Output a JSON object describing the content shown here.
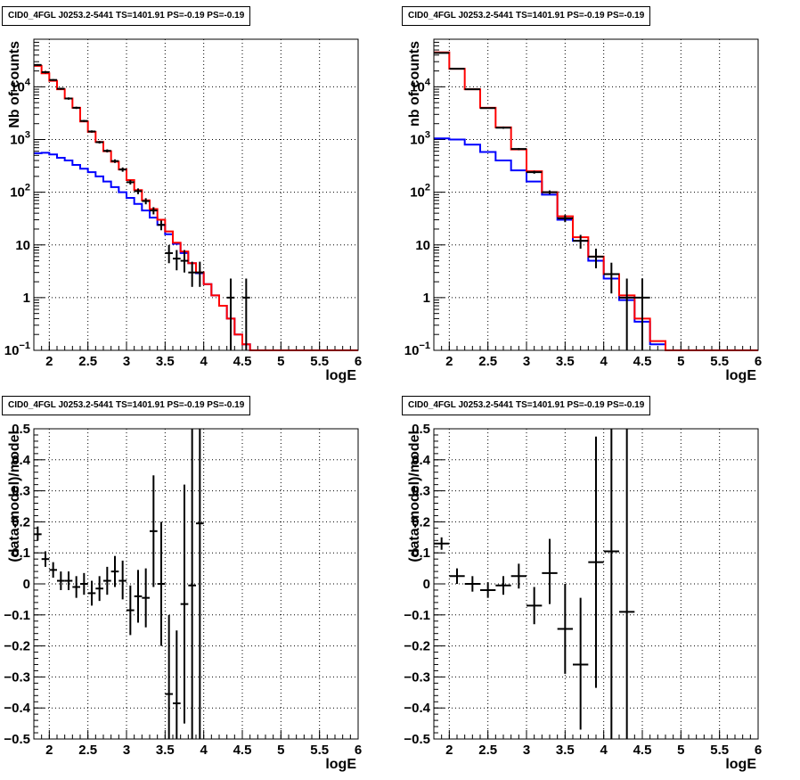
{
  "colors": {
    "model_total": "#ff0000",
    "model_background": "#0000ff",
    "data": "#000000"
  },
  "chart_data": [
    {
      "type": "line",
      "panel": "top-left",
      "title": "CID0_4FGL J0253.2-5441 TS=1401.91 PS=-0.19 PS=-0.19",
      "xlabel": "logE",
      "ylabel": "Nb of counts",
      "xlim": [
        1.8,
        6.0
      ],
      "ylim": [
        0.1,
        80000
      ],
      "yscale": "log",
      "grid": true,
      "x_tick_labels": [
        "2",
        "2.5",
        "3",
        "3.5",
        "4",
        "4.5",
        "5",
        "5.5",
        "6"
      ],
      "y_tick_labels": [
        {
          "v": 0.1,
          "label": "10",
          "sup": "−1"
        },
        {
          "v": 1,
          "label": "1",
          "sup": ""
        },
        {
          "v": 10,
          "label": "10",
          "sup": ""
        },
        {
          "v": 100,
          "label": "10",
          "sup": "2"
        },
        {
          "v": 1000,
          "label": "10",
          "sup": "3"
        },
        {
          "v": 10000,
          "label": "10",
          "sup": "4"
        }
      ],
      "bin_edges": [
        1.8,
        1.9,
        2.0,
        2.1,
        2.2,
        2.3,
        2.4,
        2.5,
        2.6,
        2.7,
        2.8,
        2.9,
        3.0,
        3.1,
        3.2,
        3.3,
        3.4,
        3.5,
        3.6,
        3.7,
        3.8,
        3.9,
        4.0,
        4.1,
        4.2,
        4.3,
        4.4,
        4.5,
        4.6,
        4.7,
        4.8,
        4.9,
        5.0,
        5.1,
        5.2,
        5.3,
        5.4,
        5.5,
        5.6,
        5.7,
        5.8,
        5.9,
        6.0
      ],
      "series": [
        {
          "values": [
            25000,
            18000,
            13000,
            9000,
            6000,
            4000,
            2200,
            1400,
            900,
            600,
            380,
            270,
            170,
            110,
            70,
            48,
            30,
            18,
            11,
            7.5,
            4.5,
            3.0,
            1.8,
            1.1,
            0.7,
            0.4,
            0.2,
            0.13,
            0.1,
            0.1,
            0.1,
            0.1,
            0.1,
            0.1,
            0.1,
            0.1,
            0.1,
            0.1,
            0.1,
            0.1,
            0.1,
            0.1
          ]
        },
        {
          "values": [
            550,
            560,
            520,
            450,
            400,
            330,
            280,
            240,
            200,
            160,
            125,
            100,
            78,
            60,
            45,
            33,
            24,
            16,
            10.5,
            7,
            4.5,
            2.9,
            1.8,
            1.1,
            0.7,
            0.4,
            0.2,
            0.13,
            0.1,
            0.1,
            0.1,
            0.1,
            0.1,
            0.1,
            0.1,
            0.1,
            0.1,
            0.1,
            0.1,
            0.1,
            0.1,
            0.1
          ]
        }
      ],
      "data_points": [
        {
          "x": 1.85,
          "y": 26000,
          "lo": 25000,
          "hi": 27000
        },
        {
          "x": 1.95,
          "y": 19000,
          "lo": 18000,
          "hi": 20000
        },
        {
          "x": 2.05,
          "y": 13500,
          "lo": 13000,
          "hi": 14000
        },
        {
          "x": 2.15,
          "y": 9200,
          "lo": 8800,
          "hi": 9600
        },
        {
          "x": 2.25,
          "y": 6000,
          "lo": 5700,
          "hi": 6300
        },
        {
          "x": 2.35,
          "y": 4000,
          "lo": 3800,
          "hi": 4200
        },
        {
          "x": 2.45,
          "y": 2250,
          "lo": 2150,
          "hi": 2350
        },
        {
          "x": 2.55,
          "y": 1420,
          "lo": 1350,
          "hi": 1490
        },
        {
          "x": 2.65,
          "y": 890,
          "lo": 840,
          "hi": 940
        },
        {
          "x": 2.75,
          "y": 610,
          "lo": 570,
          "hi": 650
        },
        {
          "x": 2.85,
          "y": 390,
          "lo": 360,
          "hi": 420
        },
        {
          "x": 2.95,
          "y": 270,
          "lo": 245,
          "hi": 295
        },
        {
          "x": 3.05,
          "y": 155,
          "lo": 140,
          "hi": 170
        },
        {
          "x": 3.15,
          "y": 105,
          "lo": 92,
          "hi": 118
        },
        {
          "x": 3.25,
          "y": 68,
          "lo": 59,
          "hi": 77
        },
        {
          "x": 3.35,
          "y": 45,
          "lo": 38,
          "hi": 52
        },
        {
          "x": 3.45,
          "y": 24,
          "lo": 19,
          "hi": 29
        },
        {
          "x": 3.55,
          "y": 7,
          "lo": 4.5,
          "hi": 10
        },
        {
          "x": 3.65,
          "y": 5.5,
          "lo": 3.3,
          "hi": 8
        },
        {
          "x": 3.75,
          "y": 5,
          "lo": 3,
          "hi": 8
        },
        {
          "x": 3.85,
          "y": 3,
          "lo": 1.6,
          "hi": 4.8
        },
        {
          "x": 3.95,
          "y": 3,
          "lo": 1.6,
          "hi": 4.8
        },
        {
          "x": 4.35,
          "y": 1,
          "lo": 0.1,
          "hi": 2.3
        },
        {
          "x": 4.55,
          "y": 1,
          "lo": 0.1,
          "hi": 2.3
        }
      ]
    },
    {
      "type": "line",
      "panel": "top-right",
      "title": "CID0_4FGL J0253.2-5441 TS=1401.91 PS=-0.19 PS=-0.19",
      "xlabel": "logE",
      "ylabel": "nb of counts",
      "xlim": [
        1.8,
        6.0
      ],
      "ylim": [
        0.1,
        80000
      ],
      "yscale": "log",
      "grid": true,
      "x_tick_labels": [
        "2",
        "2.5",
        "3",
        "3.5",
        "4",
        "4.5",
        "5",
        "5.5",
        "6"
      ],
      "y_tick_labels": [
        {
          "v": 0.1,
          "label": "10",
          "sup": "−1"
        },
        {
          "v": 1,
          "label": "1",
          "sup": ""
        },
        {
          "v": 10,
          "label": "10",
          "sup": ""
        },
        {
          "v": 100,
          "label": "10",
          "sup": "2"
        },
        {
          "v": 1000,
          "label": "10",
          "sup": "3"
        },
        {
          "v": 10000,
          "label": "10",
          "sup": "4"
        }
      ],
      "bin_edges": [
        1.8,
        2.0,
        2.2,
        2.4,
        2.6,
        2.8,
        3.0,
        3.2,
        3.4,
        3.6,
        3.8,
        4.0,
        4.2,
        4.4,
        4.6,
        4.8,
        5.0,
        5.2,
        5.4,
        5.6,
        5.8,
        6.0
      ],
      "series": [
        {
          "values": [
            45000,
            22000,
            9000,
            4000,
            1700,
            650,
            250,
            100,
            35,
            14,
            6,
            2.8,
            1.1,
            0.4,
            0.15,
            0.1,
            0.1,
            0.1,
            0.1,
            0.1,
            0.1
          ]
        },
        {
          "values": [
            1050,
            1000,
            800,
            580,
            400,
            260,
            160,
            90,
            30,
            12,
            5,
            2.3,
            0.9,
            0.35,
            0.13,
            0.1,
            0.1,
            0.1,
            0.1,
            0.1,
            0.1
          ]
        }
      ],
      "data_points": [
        {
          "x": 1.9,
          "y": 44000,
          "lo": 43000,
          "hi": 45000
        },
        {
          "x": 2.1,
          "y": 22000,
          "lo": 21500,
          "hi": 22500
        },
        {
          "x": 2.3,
          "y": 9000,
          "lo": 8800,
          "hi": 9200
        },
        {
          "x": 2.5,
          "y": 3950,
          "lo": 3850,
          "hi": 4050
        },
        {
          "x": 2.7,
          "y": 1680,
          "lo": 1600,
          "hi": 1760
        },
        {
          "x": 2.9,
          "y": 660,
          "lo": 630,
          "hi": 690
        },
        {
          "x": 3.1,
          "y": 240,
          "lo": 225,
          "hi": 255
        },
        {
          "x": 3.3,
          "y": 100,
          "lo": 92,
          "hi": 108
        },
        {
          "x": 3.5,
          "y": 32,
          "lo": 27,
          "hi": 37
        },
        {
          "x": 3.7,
          "y": 12,
          "lo": 8.5,
          "hi": 15.5
        },
        {
          "x": 3.9,
          "y": 6,
          "lo": 3.6,
          "hi": 8.5
        },
        {
          "x": 4.1,
          "y": 2.8,
          "lo": 1.2,
          "hi": 4.6
        },
        {
          "x": 4.3,
          "y": 1,
          "lo": 0.1,
          "hi": 2.3
        },
        {
          "x": 4.5,
          "y": 1,
          "lo": 0.1,
          "hi": 2.3
        }
      ]
    },
    {
      "type": "scatter",
      "panel": "bottom-left",
      "title": "CID0_4FGL J0253.2-5441 TS=1401.91 PS=-0.19 PS=-0.19",
      "xlabel": "logE",
      "ylabel": "(data-model)/model",
      "xlim": [
        1.8,
        6.0
      ],
      "ylim": [
        -0.5,
        0.5
      ],
      "yscale": "linear",
      "grid": true,
      "x_tick_labels": [
        "2",
        "2.5",
        "3",
        "3.5",
        "4",
        "4.5",
        "5",
        "5.5",
        "6"
      ],
      "y_tick_labels": [
        {
          "v": -0.5,
          "label": "−0.5",
          "sup": ""
        },
        {
          "v": -0.4,
          "label": "−0.4",
          "sup": ""
        },
        {
          "v": -0.3,
          "label": "−0.3",
          "sup": ""
        },
        {
          "v": -0.2,
          "label": "−0.2",
          "sup": ""
        },
        {
          "v": -0.1,
          "label": "−0.1",
          "sup": ""
        },
        {
          "v": 0,
          "label": "0",
          "sup": ""
        },
        {
          "v": 0.1,
          "label": "0.1",
          "sup": ""
        },
        {
          "v": 0.2,
          "label": "0.2",
          "sup": ""
        },
        {
          "v": 0.3,
          "label": "0.3",
          "sup": ""
        },
        {
          "v": 0.4,
          "label": "0.4",
          "sup": ""
        },
        {
          "v": 0.5,
          "label": "0.5",
          "sup": ""
        }
      ],
      "half_width": 0.05,
      "data_points": [
        {
          "x": 1.85,
          "y": 0.16,
          "lo": 0.14,
          "hi": 0.185
        },
        {
          "x": 1.95,
          "y": 0.08,
          "lo": 0.055,
          "hi": 0.105
        },
        {
          "x": 2.05,
          "y": 0.045,
          "lo": 0.02,
          "hi": 0.07
        },
        {
          "x": 2.15,
          "y": 0.01,
          "lo": -0.02,
          "hi": 0.04
        },
        {
          "x": 2.25,
          "y": 0.01,
          "lo": -0.02,
          "hi": 0.04
        },
        {
          "x": 2.35,
          "y": -0.01,
          "lo": -0.045,
          "hi": 0.025
        },
        {
          "x": 2.45,
          "y": 0.0,
          "lo": -0.035,
          "hi": 0.035
        },
        {
          "x": 2.55,
          "y": -0.03,
          "lo": -0.07,
          "hi": 0.01
        },
        {
          "x": 2.65,
          "y": -0.015,
          "lo": -0.055,
          "hi": 0.025
        },
        {
          "x": 2.75,
          "y": 0.01,
          "lo": -0.035,
          "hi": 0.055
        },
        {
          "x": 2.85,
          "y": 0.04,
          "lo": -0.01,
          "hi": 0.09
        },
        {
          "x": 2.95,
          "y": 0.01,
          "lo": -0.05,
          "hi": 0.075
        },
        {
          "x": 3.05,
          "y": -0.085,
          "lo": -0.165,
          "hi": -0.005
        },
        {
          "x": 3.15,
          "y": -0.04,
          "lo": -0.125,
          "hi": 0.045
        },
        {
          "x": 3.25,
          "y": -0.045,
          "lo": -0.14,
          "hi": 0.05
        },
        {
          "x": 3.35,
          "y": 0.17,
          "lo": -0.01,
          "hi": 0.35
        },
        {
          "x": 3.45,
          "y": 0.0,
          "lo": -0.2,
          "hi": 0.2
        },
        {
          "x": 3.55,
          "y": -0.355,
          "lo": -0.5,
          "hi": -0.1
        },
        {
          "x": 3.65,
          "y": -0.385,
          "lo": -0.5,
          "hi": -0.15
        },
        {
          "x": 3.75,
          "y": -0.065,
          "lo": -0.45,
          "hi": 0.32
        },
        {
          "x": 3.85,
          "y": -0.005,
          "lo": -0.5,
          "hi": 0.5
        },
        {
          "x": 3.95,
          "y": 0.195,
          "lo": -0.5,
          "hi": 0.5
        }
      ]
    },
    {
      "type": "scatter",
      "panel": "bottom-right",
      "title": "CID0_4FGL J0253.2-5441 TS=1401.91 PS=-0.19 PS=-0.19",
      "xlabel": "logE",
      "ylabel": "(data-model)/model",
      "xlim": [
        1.8,
        6.0
      ],
      "ylim": [
        -0.5,
        0.5
      ],
      "yscale": "linear",
      "grid": true,
      "x_tick_labels": [
        "2",
        "2.5",
        "3",
        "3.5",
        "4",
        "4.5",
        "5",
        "5.5",
        "6"
      ],
      "y_tick_labels": [
        {
          "v": -0.5,
          "label": "−0.5",
          "sup": ""
        },
        {
          "v": -0.4,
          "label": "−0.4",
          "sup": ""
        },
        {
          "v": -0.3,
          "label": "−0.3",
          "sup": ""
        },
        {
          "v": -0.2,
          "label": "−0.2",
          "sup": ""
        },
        {
          "v": -0.1,
          "label": "−0.1",
          "sup": ""
        },
        {
          "v": 0,
          "label": "0",
          "sup": ""
        },
        {
          "v": 0.1,
          "label": "0.1",
          "sup": ""
        },
        {
          "v": 0.2,
          "label": "0.2",
          "sup": ""
        },
        {
          "v": 0.3,
          "label": "0.3",
          "sup": ""
        },
        {
          "v": 0.4,
          "label": "0.4",
          "sup": ""
        },
        {
          "v": 0.5,
          "label": "0.5",
          "sup": ""
        }
      ],
      "half_width": 0.1,
      "data_points": [
        {
          "x": 1.9,
          "y": 0.13,
          "lo": 0.11,
          "hi": 0.15
        },
        {
          "x": 2.1,
          "y": 0.025,
          "lo": 0.0,
          "hi": 0.05
        },
        {
          "x": 2.3,
          "y": 0.0,
          "lo": -0.025,
          "hi": 0.025
        },
        {
          "x": 2.5,
          "y": -0.02,
          "lo": -0.045,
          "hi": 0.005
        },
        {
          "x": 2.7,
          "y": -0.005,
          "lo": -0.035,
          "hi": 0.025
        },
        {
          "x": 2.9,
          "y": 0.025,
          "lo": -0.015,
          "hi": 0.065
        },
        {
          "x": 3.1,
          "y": -0.07,
          "lo": -0.13,
          "hi": -0.01
        },
        {
          "x": 3.3,
          "y": 0.035,
          "lo": -0.065,
          "hi": 0.145
        },
        {
          "x": 3.5,
          "y": -0.145,
          "lo": -0.29,
          "hi": 0.0
        },
        {
          "x": 3.7,
          "y": -0.26,
          "lo": -0.47,
          "hi": -0.045
        },
        {
          "x": 3.9,
          "y": 0.07,
          "lo": -0.335,
          "hi": 0.475
        },
        {
          "x": 4.1,
          "y": 0.105,
          "lo": -0.5,
          "hi": 0.5
        },
        {
          "x": 4.3,
          "y": -0.09,
          "lo": -0.5,
          "hi": 0.5
        }
      ]
    }
  ]
}
